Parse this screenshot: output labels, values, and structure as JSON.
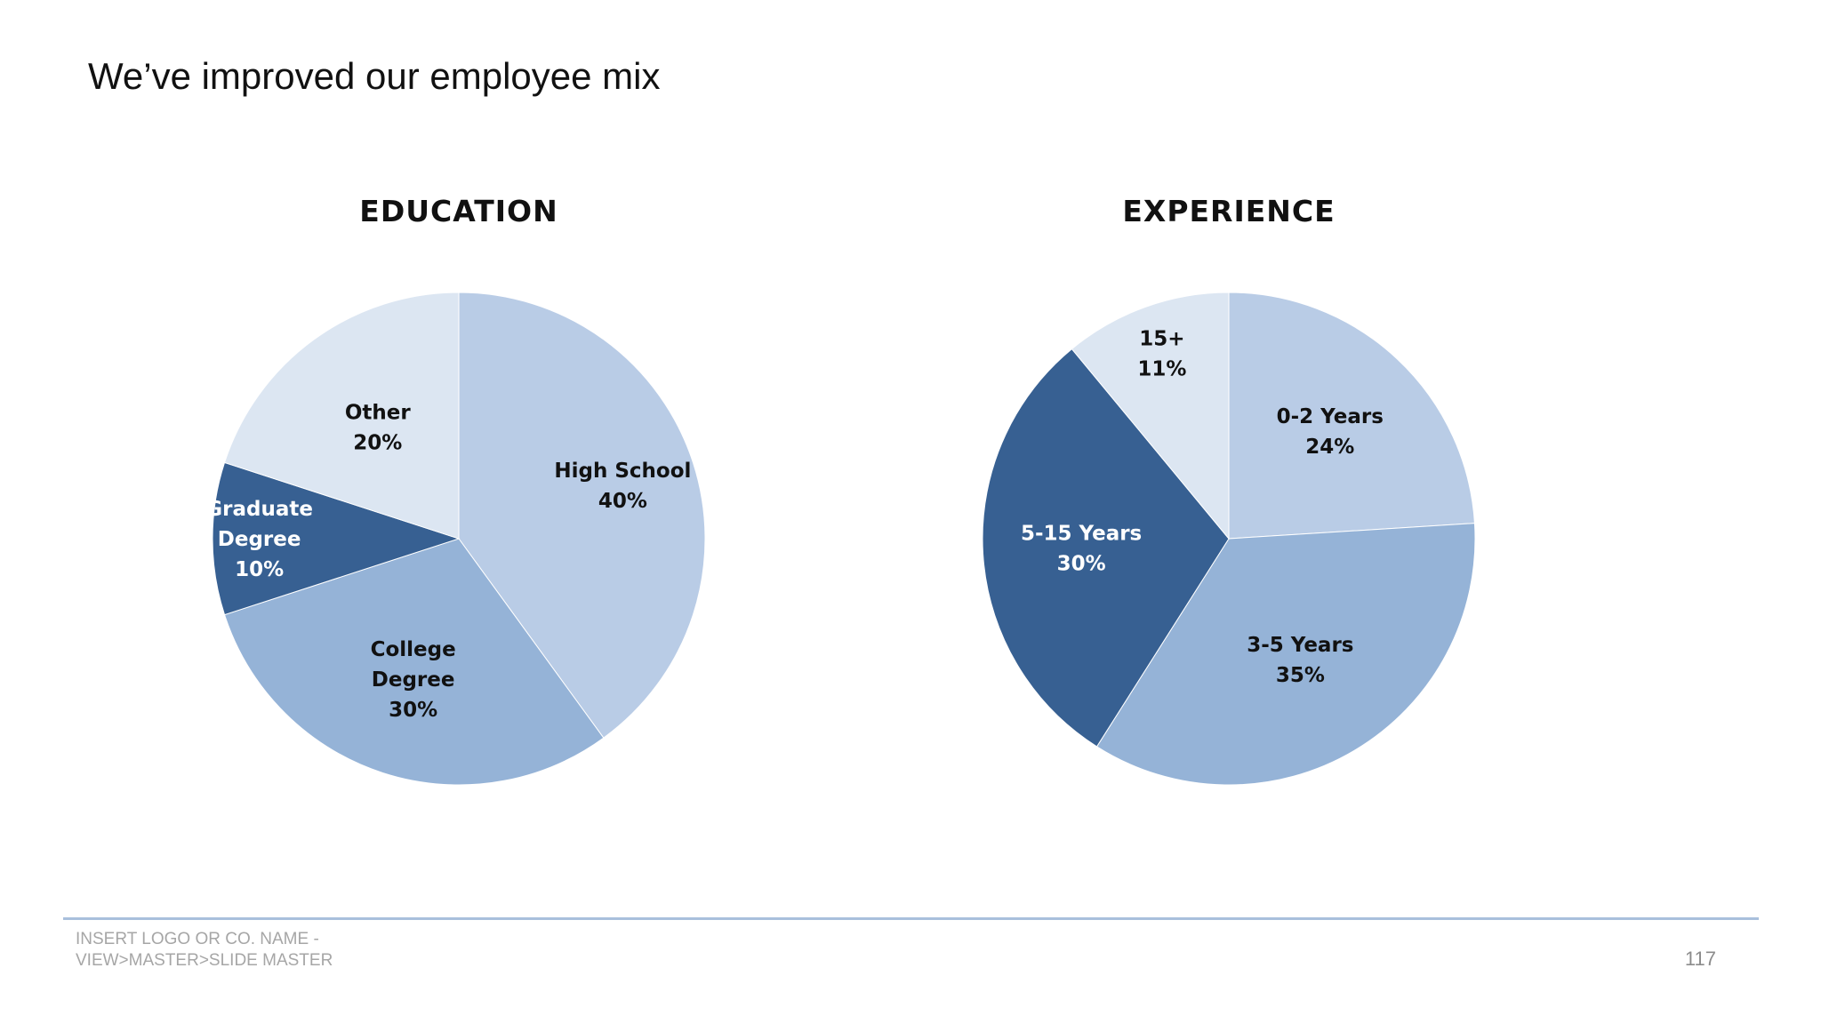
{
  "slide": {
    "title": "We’ve improved our employee mix",
    "footer_line1": "INSERT LOGO OR CO. NAME -",
    "footer_line2": "VIEW>MASTER>SLIDE MASTER",
    "page_number": "117"
  },
  "colors": {
    "light": "#b9cce6",
    "lightest": "#dce6f2",
    "medium": "#95b3d7",
    "dark": "#376092",
    "label_dark": "#111111",
    "label_light": "#ffffff"
  },
  "chart_data": [
    {
      "type": "pie",
      "title": "EDUCATION",
      "start_angle_deg": 0,
      "direction": "clockwise",
      "slices": [
        {
          "name": "High School",
          "label_lines": [
            "High School",
            "40%"
          ],
          "value": 40,
          "color": "#b9cce6",
          "label_color": "#111111"
        },
        {
          "name": "College Degree",
          "label_lines": [
            "College",
            "Degree",
            "30%"
          ],
          "value": 30,
          "color": "#95b3d7",
          "label_color": "#111111"
        },
        {
          "name": "Graduate Degree",
          "label_lines": [
            "Graduate",
            "Degree",
            "10%"
          ],
          "value": 10,
          "color": "#376092",
          "label_color": "#ffffff"
        },
        {
          "name": "Other",
          "label_lines": [
            "Other",
            "20%"
          ],
          "value": 20,
          "color": "#dce6f2",
          "label_color": "#111111"
        }
      ]
    },
    {
      "type": "pie",
      "title": "EXPERIENCE",
      "start_angle_deg": 0,
      "direction": "clockwise",
      "slices": [
        {
          "name": "0-2 Years",
          "label_lines": [
            "0-2 Years",
            "24%"
          ],
          "value": 24,
          "color": "#b9cce6",
          "label_color": "#111111"
        },
        {
          "name": "3-5 Years",
          "label_lines": [
            "3-5 Years",
            "35%"
          ],
          "value": 35,
          "color": "#95b3d7",
          "label_color": "#111111"
        },
        {
          "name": "5-15 Years",
          "label_lines": [
            "5-15 Years",
            "30%"
          ],
          "value": 30,
          "color": "#376092",
          "label_color": "#ffffff"
        },
        {
          "name": "15+",
          "label_lines": [
            "15+",
            "11%"
          ],
          "value": 11,
          "color": "#dce6f2",
          "label_color": "#111111"
        }
      ]
    }
  ]
}
